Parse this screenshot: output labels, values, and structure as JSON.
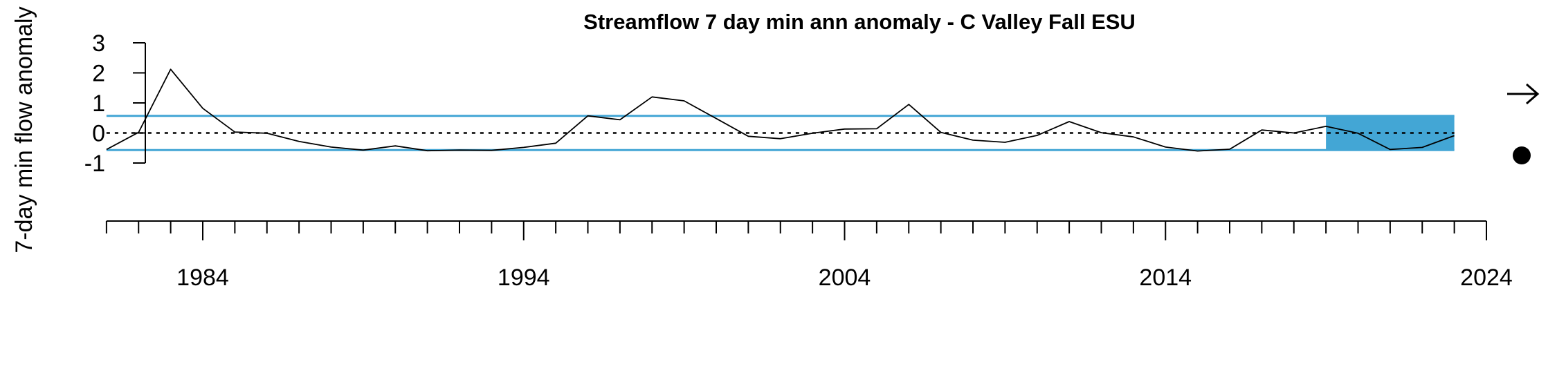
{
  "chart_data": {
    "type": "line",
    "title": "Streamflow 7 day min ann anomaly - C Valley Fall ESU",
    "xlabel": "",
    "ylabel": "7-day min flow anomaly",
    "xlim": [
      1978.7,
      2024
    ],
    "ylim": [
      -1,
      3
    ],
    "x_tick_labels": [
      "1984",
      "1994",
      "2004",
      "2014",
      "2024"
    ],
    "y_tick_labels": [
      "-1",
      "0",
      "1",
      "2",
      "3"
    ],
    "x": [
      1981,
      1982,
      1983,
      1984,
      1985,
      1986,
      1987,
      1988,
      1989,
      1990,
      1991,
      1992,
      1993,
      1994,
      1995,
      1996,
      1997,
      1998,
      1999,
      2000,
      2001,
      2002,
      2003,
      2004,
      2005,
      2006,
      2007,
      2008,
      2009,
      2010,
      2011,
      2012,
      2013,
      2014,
      2015,
      2016,
      2017,
      2018,
      2019,
      2020,
      2021,
      2022,
      2023
    ],
    "values": [
      -0.55,
      0.02,
      2.12,
      0.82,
      0.03,
      -0.01,
      -0.28,
      -0.47,
      -0.57,
      -0.43,
      -0.59,
      -0.57,
      -0.58,
      -0.48,
      -0.34,
      0.57,
      0.44,
      1.2,
      1.07,
      0.48,
      -0.11,
      -0.19,
      -0.01,
      0.13,
      0.14,
      0.95,
      0.02,
      -0.24,
      -0.31,
      -0.08,
      0.38,
      0.01,
      -0.13,
      -0.47,
      -0.6,
      -0.54,
      0.1,
      0.0,
      0.22,
      -0.01,
      -0.55,
      -0.48,
      -0.09
    ],
    "reference_lines": {
      "mean": 0,
      "upper_sd": 0.57,
      "lower_sd": -0.57
    },
    "shaded_period": {
      "from": 2019,
      "to": 2023
    },
    "legend_symbols": [
      "arrow-right-icon",
      "dot-icon"
    ],
    "colors": {
      "line": "#000000",
      "sd_lines": "#43A6D5",
      "shade": "#43A6D5",
      "axis": "#000000"
    }
  }
}
